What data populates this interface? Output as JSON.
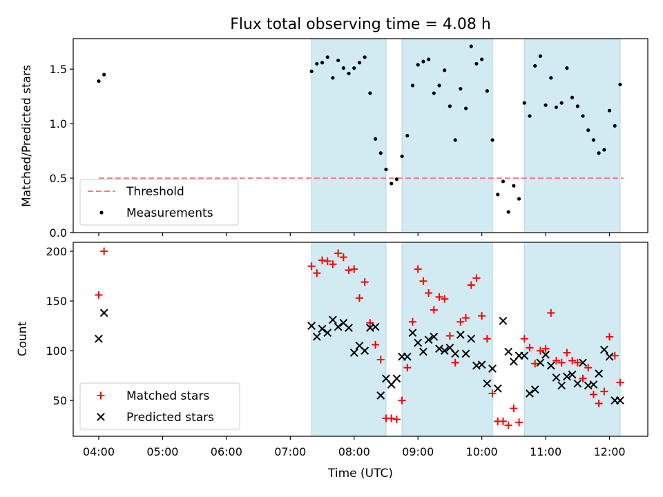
{
  "title": "Flux total observing time = 4.08 h",
  "chart_data": [
    {
      "type": "scatter",
      "ylabel": "Matched/Predicted stars",
      "xlabel": "",
      "xlim": [
        "03:36",
        "12:36"
      ],
      "ylim": [
        0,
        1.78
      ],
      "yticks": [
        0.0,
        0.5,
        1.0,
        1.5
      ],
      "ytick_labels": [
        "0.0",
        "0.5",
        "1.0",
        "1.5"
      ],
      "grid": false,
      "legend": "lower-left",
      "legend_entries": [
        "Threshold",
        "Measurements"
      ],
      "threshold": {
        "name": "Threshold",
        "y": 0.5,
        "x_start": "04:00",
        "x_end": "12:13",
        "color": "#f08080"
      },
      "series": [
        {
          "name": "Measurements",
          "marker": "dot",
          "color": "#000000",
          "x": [
            "04:00",
            "04:05",
            "07:20",
            "07:25",
            "07:30",
            "07:35",
            "07:40",
            "07:45",
            "07:50",
            "07:55",
            "08:00",
            "08:05",
            "08:10",
            "08:15",
            "08:20",
            "08:25",
            "08:30",
            "08:35",
            "08:40",
            "08:45",
            "08:50",
            "08:55",
            "09:00",
            "09:05",
            "09:10",
            "09:15",
            "09:20",
            "09:25",
            "09:30",
            "09:35",
            "09:40",
            "09:45",
            "09:50",
            "09:55",
            "10:00",
            "10:05",
            "10:10",
            "10:15",
            "10:20",
            "10:25",
            "10:30",
            "10:35",
            "10:40",
            "10:45",
            "10:50",
            "10:55",
            "11:00",
            "11:05",
            "11:10",
            "11:15",
            "11:20",
            "11:25",
            "11:30",
            "11:35",
            "11:40",
            "11:45",
            "11:50",
            "11:55",
            "12:00",
            "12:05",
            "12:10"
          ],
          "y": [
            1.39,
            1.45,
            1.48,
            1.55,
            1.56,
            1.61,
            1.42,
            1.58,
            1.51,
            1.46,
            1.51,
            1.56,
            1.61,
            1.28,
            0.86,
            0.73,
            0.58,
            0.45,
            0.49,
            0.7,
            0.89,
            1.35,
            1.54,
            1.57,
            1.59,
            1.28,
            1.35,
            1.49,
            1.16,
            0.85,
            1.32,
            1.14,
            1.71,
            1.55,
            1.59,
            1.3,
            0.85,
            0.35,
            0.47,
            0.19,
            0.43,
            0.31,
            1.19,
            1.07,
            1.53,
            1.62,
            1.17,
            1.42,
            1.15,
            1.19,
            1.51,
            1.24,
            1.16,
            1.07,
            0.94,
            0.85,
            0.73,
            0.76,
            1.12,
            0.98,
            1.36
          ]
        }
      ],
      "shaded_intervals": [
        [
          "07:20",
          "08:30"
        ],
        [
          "08:45",
          "10:10"
        ],
        [
          "10:40",
          "12:10"
        ]
      ],
      "shade_color": "#add8e6"
    },
    {
      "type": "scatter",
      "ylabel": "Count",
      "xlabel": "Time (UTC)",
      "xlim": [
        "03:36",
        "12:36"
      ],
      "ylim": [
        14,
        209
      ],
      "yticks": [
        50,
        100,
        150,
        200
      ],
      "ytick_labels": [
        "50",
        "100",
        "150",
        "200"
      ],
      "xticks": [
        "04:00",
        "05:00",
        "06:00",
        "07:00",
        "08:00",
        "09:00",
        "10:00",
        "11:00",
        "12:00"
      ],
      "xtick_labels": [
        "04:00",
        "05:00",
        "06:00",
        "07:00",
        "08:00",
        "09:00",
        "10:00",
        "11:00",
        "12:00"
      ],
      "grid": false,
      "legend": "lower-left",
      "legend_entries": [
        "Matched stars",
        "Predicted stars"
      ],
      "series": [
        {
          "name": "Matched stars",
          "marker": "plus",
          "color": "#ff0000",
          "x": [
            "04:00",
            "04:05",
            "07:20",
            "07:25",
            "07:30",
            "07:35",
            "07:40",
            "07:45",
            "07:50",
            "07:55",
            "08:00",
            "08:05",
            "08:10",
            "08:15",
            "08:20",
            "08:25",
            "08:30",
            "08:35",
            "08:40",
            "08:45",
            "08:50",
            "08:55",
            "09:00",
            "09:05",
            "09:10",
            "09:15",
            "09:20",
            "09:25",
            "09:30",
            "09:35",
            "09:40",
            "09:45",
            "09:50",
            "09:55",
            "10:00",
            "10:05",
            "10:10",
            "10:15",
            "10:20",
            "10:25",
            "10:30",
            "10:35",
            "10:40",
            "10:45",
            "10:50",
            "10:55",
            "11:00",
            "11:05",
            "11:10",
            "11:15",
            "11:20",
            "11:25",
            "11:30",
            "11:35",
            "11:40",
            "11:45",
            "11:50",
            "11:55",
            "12:00",
            "12:05",
            "12:10"
          ],
          "y": [
            156,
            200,
            185,
            178,
            191,
            190,
            187,
            198,
            194,
            181,
            182,
            153,
            169,
            128,
            106,
            91,
            32,
            32,
            31,
            50,
            83,
            129,
            182,
            170,
            158,
            141,
            154,
            152,
            115,
            88,
            129,
            133,
            166,
            173,
            135,
            112,
            57,
            29,
            29,
            25,
            42,
            28,
            112,
            103,
            87,
            100,
            102,
            138,
            90,
            88,
            98,
            90,
            88,
            72,
            83,
            56,
            47,
            59,
            114,
            95,
            68
          ]
        },
        {
          "name": "Predicted stars",
          "marker": "x",
          "color": "#000000",
          "x": [
            "04:00",
            "04:05",
            "07:20",
            "07:25",
            "07:30",
            "07:35",
            "07:40",
            "07:45",
            "07:50",
            "07:55",
            "08:00",
            "08:05",
            "08:10",
            "08:15",
            "08:20",
            "08:25",
            "08:30",
            "08:35",
            "08:40",
            "08:45",
            "08:50",
            "08:55",
            "09:00",
            "09:05",
            "09:10",
            "09:15",
            "09:20",
            "09:25",
            "09:30",
            "09:35",
            "09:40",
            "09:45",
            "09:50",
            "09:55",
            "10:00",
            "10:05",
            "10:10",
            "10:15",
            "10:20",
            "10:25",
            "10:30",
            "10:35",
            "10:40",
            "10:45",
            "10:50",
            "10:55",
            "11:00",
            "11:05",
            "11:10",
            "11:15",
            "11:20",
            "11:25",
            "11:30",
            "11:35",
            "11:40",
            "11:45",
            "11:50",
            "11:55",
            "12:00",
            "12:05",
            "12:10"
          ],
          "y": [
            112,
            138,
            125,
            114,
            122,
            118,
            131,
            124,
            128,
            123,
            98,
            105,
            100,
            123,
            124,
            55,
            72,
            66,
            72,
            94,
            94,
            118,
            108,
            99,
            111,
            114,
            102,
            100,
            103,
            97,
            116,
            97,
            112,
            85,
            86,
            67,
            82,
            62,
            130,
            99,
            89,
            95,
            95,
            57,
            61,
            88,
            96,
            85,
            73,
            65,
            74,
            76,
            67,
            88,
            65,
            66,
            77,
            101,
            94,
            50,
            50
          ]
        }
      ],
      "shaded_intervals": [
        [
          "07:20",
          "08:30"
        ],
        [
          "08:45",
          "10:10"
        ],
        [
          "10:40",
          "12:10"
        ]
      ],
      "shade_color": "#add8e6"
    }
  ]
}
